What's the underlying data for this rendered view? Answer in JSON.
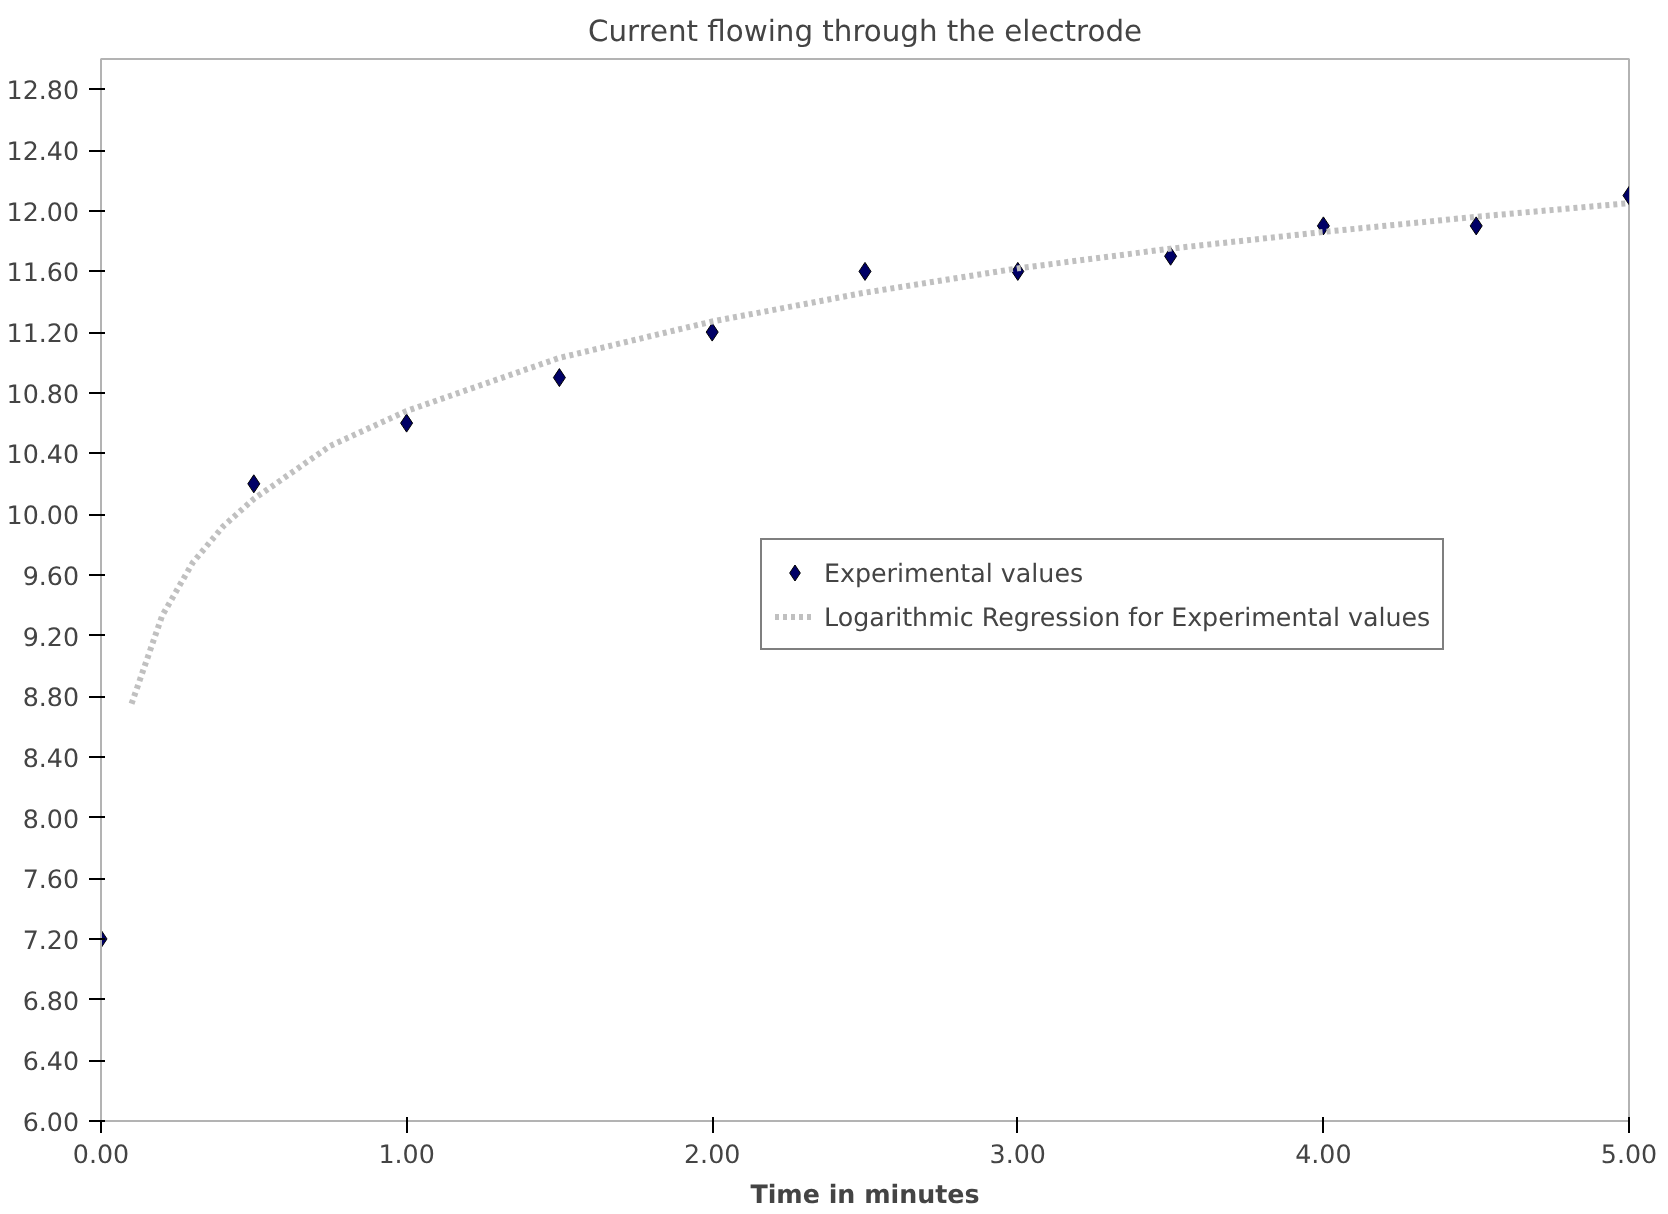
{
  "chart_data": {
    "type": "scatter",
    "title": "Current flowing through the electrode",
    "xlabel": "Time in minutes",
    "x": [
      0,
      0.5,
      1,
      1.5,
      2,
      2.5,
      3,
      3.5,
      4,
      4.5,
      5
    ],
    "series": [
      {
        "name": "Experimental values",
        "color": "#000066",
        "marker": "diamond",
        "values": [
          7.2,
          10.2,
          10.6,
          10.9,
          11.2,
          11.6,
          11.6,
          11.7,
          11.9,
          11.9,
          12.1
        ]
      },
      {
        "name": "Logarithmic Regression for Experimental values",
        "type": "line",
        "line_style": "dotted",
        "color": "#c0c0c0",
        "marker": "none",
        "x": [
          0.1,
          0.2,
          0.3,
          0.4,
          0.5,
          0.75,
          1,
          1.5,
          2,
          2.5,
          3,
          3.5,
          4,
          4.5,
          5
        ],
        "values": [
          8.75,
          9.33,
          9.68,
          9.92,
          10.1,
          10.45,
          10.68,
          11.03,
          11.27,
          11.46,
          11.62,
          11.75,
          11.86,
          11.96,
          12.05
        ]
      }
    ],
    "xlim": [
      0,
      5
    ],
    "xticks": [
      {
        "value": 0,
        "label": "0.00"
      },
      {
        "value": 1,
        "label": "1.00"
      },
      {
        "value": 2,
        "label": "2.00"
      },
      {
        "value": 3,
        "label": "3.00"
      },
      {
        "value": 4,
        "label": "4.00"
      },
      {
        "value": 5,
        "label": "5.00"
      }
    ],
    "ylim": [
      6,
      13
    ],
    "yticks": [
      {
        "value": 6,
        "label": "6.00"
      },
      {
        "value": 6.4,
        "label": "6.40"
      },
      {
        "value": 6.8,
        "label": "6.80"
      },
      {
        "value": 7.2,
        "label": "7.20"
      },
      {
        "value": 7.6,
        "label": "7.60"
      },
      {
        "value": 8,
        "label": "8.00"
      },
      {
        "value": 8.4,
        "label": "8.40"
      },
      {
        "value": 8.8,
        "label": "8.80"
      },
      {
        "value": 9.2,
        "label": "9.20"
      },
      {
        "value": 9.6,
        "label": "9.60"
      },
      {
        "value": 10,
        "label": "10.00"
      },
      {
        "value": 10.4,
        "label": "10.40"
      },
      {
        "value": 10.8,
        "label": "10.80"
      },
      {
        "value": 11.2,
        "label": "11.20"
      },
      {
        "value": 11.6,
        "label": "11.60"
      },
      {
        "value": 12,
        "label": "12.00"
      },
      {
        "value": 12.4,
        "label": "12.40"
      },
      {
        "value": 12.8,
        "label": "12.80"
      }
    ],
    "grid": false,
    "legend": "right"
  }
}
